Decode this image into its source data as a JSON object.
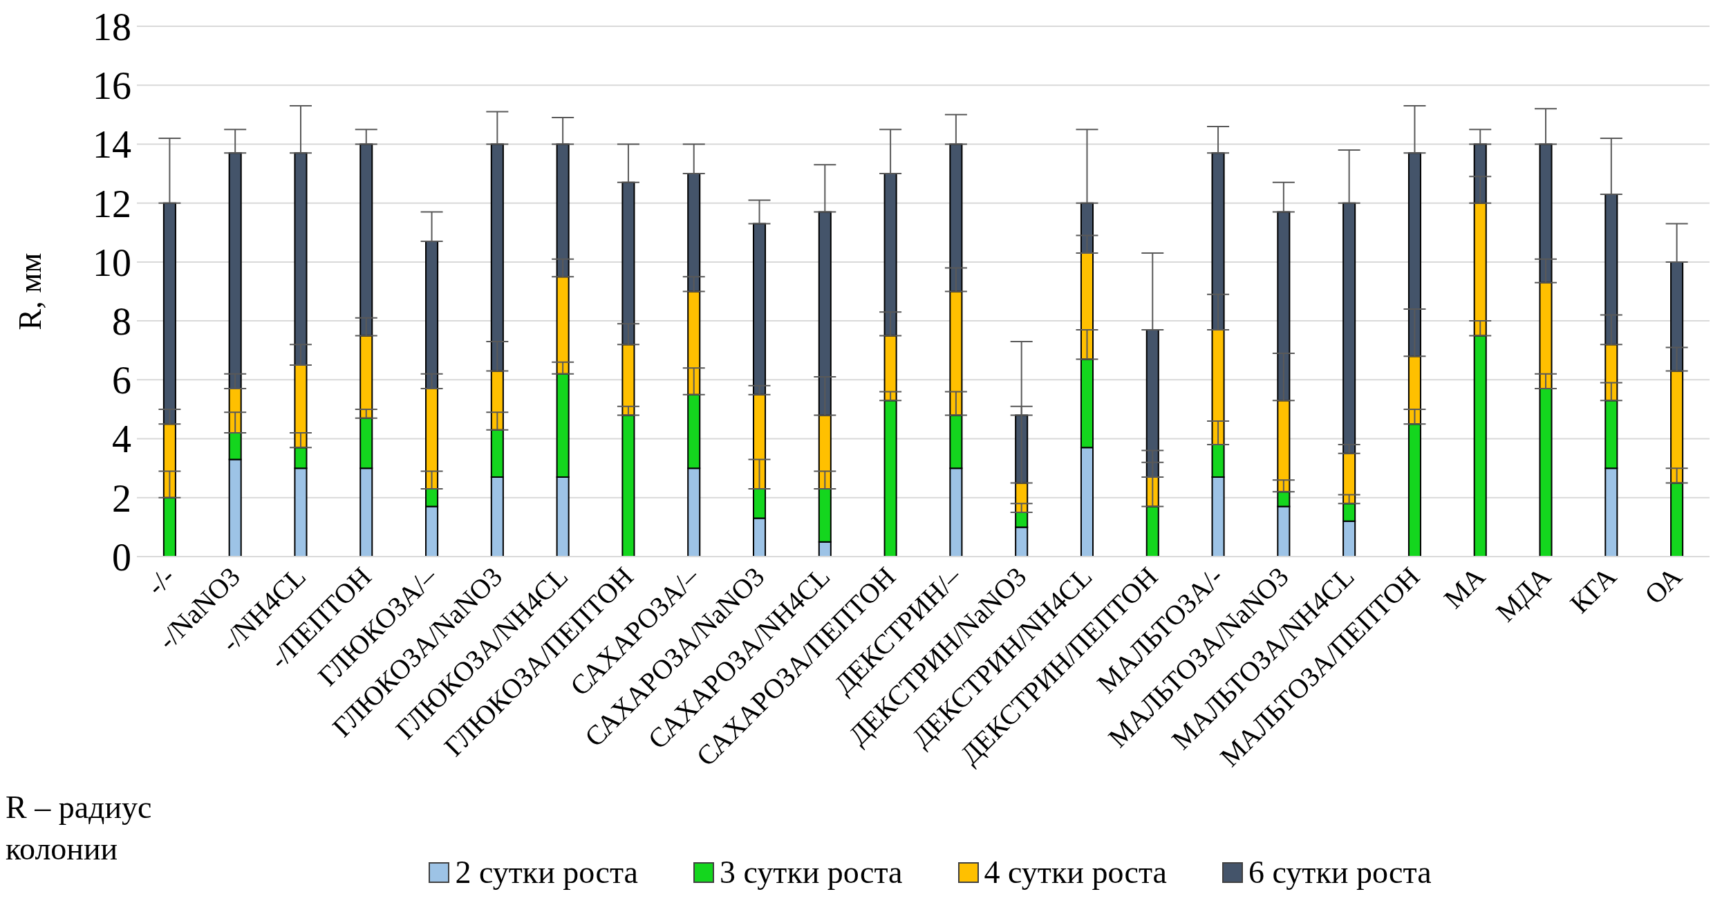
{
  "chart_data": {
    "type": "bar",
    "stacked": true,
    "ylabel": "R, мм",
    "categories": [
      "-/-",
      "-/NaNO3",
      "-/NH4CL",
      "-/ПЕПТОН",
      "ГЛЮКОЗА/–",
      "ГЛЮКОЗА/NaNO3",
      "ГЛЮКОЗА/NH4CL",
      "ГЛЮКОЗА/ПЕПТОН",
      "САХАРОЗА/–",
      "САХАРОЗА/NaNO3",
      "САХАРОЗА/NH4CL",
      "САХАРОЗА/ПЕПТОН",
      "ДЕКСТРИН/–",
      "ДЕКСТРИН/NaNO3",
      "ДЕКСТРИН/NH4CL",
      "ДЕКСТРИН/ПЕПТОН",
      "МАЛЬТОЗА/-",
      "МАЛЬТОЗА/NaNO3",
      "МАЛЬТОЗА/NH4CL",
      "МАЛЬТОЗА/ПЕПТОН",
      "МА",
      "МДА",
      "КГА",
      "ОА"
    ],
    "series": [
      {
        "name": "2 сутки роста",
        "color": "#9dc3e6",
        "values": [
          0,
          3.3,
          3.0,
          3.0,
          1.7,
          2.7,
          2.7,
          0,
          3.0,
          1.3,
          0.5,
          0,
          3.0,
          1.0,
          3.7,
          0,
          2.7,
          1.7,
          1.2,
          0,
          0,
          0,
          3.0,
          0
        ]
      },
      {
        "name": "3 сутки роста",
        "color": "#14d61e",
        "values": [
          2.0,
          0.9,
          0.7,
          1.7,
          0.6,
          1.6,
          3.5,
          4.8,
          2.5,
          1.0,
          1.8,
          5.3,
          1.8,
          0.5,
          3.0,
          1.7,
          1.1,
          0.5,
          0.6,
          4.5,
          7.5,
          5.7,
          2.3,
          2.5
        ],
        "errors": [
          [
            2.0,
            2.9
          ],
          [
            4.2,
            4.9
          ],
          [
            3.7,
            4.2
          ],
          [
            4.7,
            5.0
          ],
          [
            2.3,
            2.9
          ],
          [
            4.3,
            4.9
          ],
          [
            6.2,
            6.6
          ],
          [
            4.8,
            5.1
          ],
          [
            5.5,
            6.4
          ],
          [
            2.3,
            3.3
          ],
          [
            2.3,
            2.9
          ],
          [
            5.3,
            5.6
          ],
          [
            4.8,
            5.6
          ],
          [
            1.5,
            1.8
          ],
          [
            6.7,
            7.7
          ],
          [
            1.7,
            3.2
          ],
          [
            3.8,
            4.6
          ],
          [
            2.2,
            2.6
          ],
          [
            1.8,
            2.1
          ],
          [
            4.5,
            5.0
          ],
          [
            7.5,
            8.0
          ],
          [
            5.7,
            6.2
          ],
          [
            5.3,
            5.9
          ],
          [
            2.5,
            3.0
          ]
        ]
      },
      {
        "name": "4 сутки роста",
        "color": "#ffc000",
        "values": [
          2.5,
          1.5,
          2.8,
          2.8,
          3.4,
          2.0,
          3.3,
          2.4,
          3.5,
          3.2,
          2.5,
          2.2,
          4.2,
          1.0,
          3.6,
          1.0,
          3.9,
          3.1,
          1.7,
          2.3,
          4.5,
          3.6,
          1.9,
          3.8
        ],
        "errors": [
          [
            4.5,
            5.0
          ],
          [
            5.7,
            6.2
          ],
          [
            6.5,
            7.2
          ],
          [
            7.5,
            8.1
          ],
          [
            5.7,
            6.2
          ],
          [
            6.3,
            7.3
          ],
          [
            9.5,
            10.1
          ],
          [
            7.2,
            7.9
          ],
          [
            9.0,
            9.5
          ],
          [
            5.5,
            5.8
          ],
          [
            4.8,
            6.1
          ],
          [
            7.5,
            8.3
          ],
          [
            9.0,
            9.8
          ],
          [
            2.5,
            5.1
          ],
          [
            10.3,
            10.9
          ],
          [
            2.7,
            3.6
          ],
          [
            7.7,
            8.9
          ],
          [
            5.3,
            6.9
          ],
          [
            3.5,
            3.8
          ],
          [
            6.8,
            8.4
          ],
          [
            12.0,
            12.9
          ],
          [
            9.3,
            10.1
          ],
          [
            7.2,
            8.2
          ],
          [
            6.3,
            7.1
          ]
        ]
      },
      {
        "name": "6 сутки роста",
        "color": "#44546a",
        "values": [
          7.5,
          8.0,
          7.2,
          6.5,
          5.0,
          7.7,
          4.5,
          5.5,
          4.0,
          5.8,
          6.9,
          5.5,
          5.0,
          2.3,
          1.7,
          5.0,
          6.0,
          6.4,
          8.5,
          6.9,
          2.0,
          4.7,
          5.1,
          3.7
        ],
        "errors": [
          [
            12.0,
            14.2
          ],
          [
            13.7,
            14.5
          ],
          [
            13.7,
            15.3
          ],
          [
            14.0,
            14.5
          ],
          [
            10.7,
            11.7
          ],
          [
            14.0,
            15.1
          ],
          [
            14.0,
            14.9
          ],
          [
            12.7,
            14.0
          ],
          [
            13.0,
            14.0
          ],
          [
            11.3,
            12.1
          ],
          [
            11.7,
            13.3
          ],
          [
            13.0,
            14.5
          ],
          [
            14.0,
            15.0
          ],
          [
            4.8,
            7.3
          ],
          [
            12.0,
            14.5
          ],
          [
            7.7,
            10.3
          ],
          [
            13.7,
            14.6
          ],
          [
            11.7,
            12.7
          ],
          [
            12.0,
            13.8
          ],
          [
            13.7,
            15.3
          ],
          [
            14.0,
            14.5
          ],
          [
            14.0,
            15.2
          ],
          [
            12.3,
            14.2
          ],
          [
            10.0,
            11.3
          ]
        ]
      }
    ],
    "ylim": [
      0,
      18
    ],
    "yticks": [
      0,
      2,
      4,
      6,
      8,
      10,
      12,
      14,
      16,
      18
    ],
    "grid": "y",
    "legend": "bottom",
    "annotations": [
      "R – радиус колонии"
    ]
  }
}
